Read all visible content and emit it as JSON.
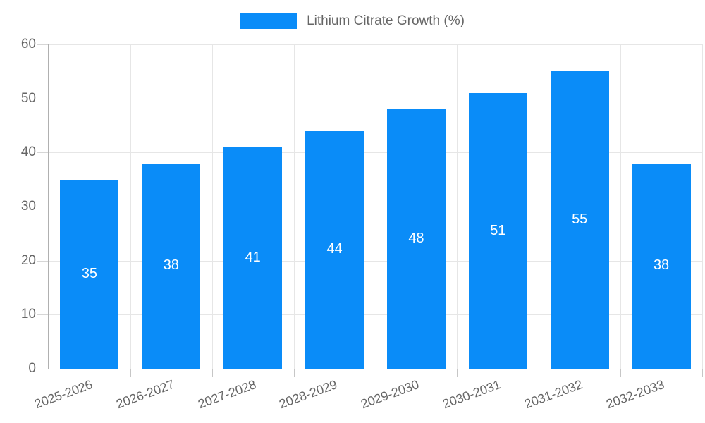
{
  "legend": {
    "label": "Lithium Citrate Growth (%)"
  },
  "colors": {
    "bar": "#0a8cf8",
    "axis_text": "#666666",
    "grid": "#e6e6e6",
    "value_label": "#ffffff"
  },
  "chart_data": {
    "type": "bar",
    "title": "",
    "categories": [
      "2025-2026",
      "2026-2027",
      "2027-2028",
      "2028-2029",
      "2029-2030",
      "2030-2031",
      "2031-2032",
      "2032-2033"
    ],
    "series": [
      {
        "name": "Lithium Citrate Growth (%)",
        "values": [
          35,
          38,
          41,
          44,
          48,
          51,
          55,
          38
        ]
      }
    ],
    "xlabel": "",
    "ylabel": "",
    "ylim": [
      0,
      60
    ],
    "yticks": [
      0,
      10,
      20,
      30,
      40,
      50,
      60
    ],
    "grid": true,
    "legend_position": "top",
    "bar_value_labels": true,
    "x_label_rotation_deg": -20
  }
}
